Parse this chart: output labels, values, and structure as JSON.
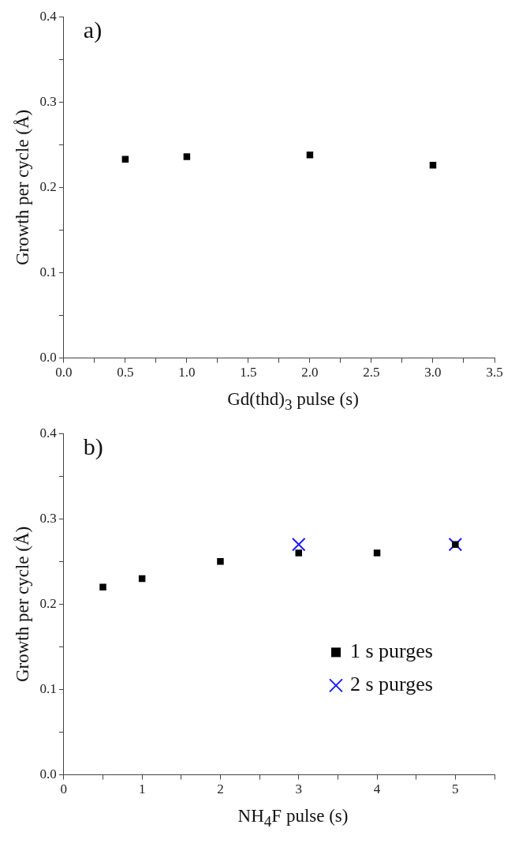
{
  "chart_data": [
    {
      "type": "scatter",
      "annotations": [
        "a)"
      ],
      "xlabel": "Gd(thd)$_{3}$ pulse (s)",
      "ylabel": "Growth per cycle (Å)",
      "x": [
        0.5,
        1,
        2,
        3
      ],
      "series": [
        {
          "color": "#000000",
          "marker": "square",
          "values": [
            0.233,
            0.236,
            0.238,
            0.226
          ]
        }
      ],
      "xlim": [
        0,
        3.5
      ],
      "ylim": [
        0,
        0.4
      ],
      "xticks": [
        {
          "value": 0,
          "label": "0.0"
        },
        {
          "value": 0.25,
          "label": null
        },
        {
          "value": 0.5,
          "label": "0.5"
        },
        {
          "value": 0.75,
          "label": null
        },
        {
          "value": 1,
          "label": "1.0"
        },
        {
          "value": 1.25,
          "label": null
        },
        {
          "value": 1.5,
          "label": "1.5"
        },
        {
          "value": 1.75,
          "label": null
        },
        {
          "value": 2,
          "label": "2.0"
        },
        {
          "value": 2.25,
          "label": null
        },
        {
          "value": 2.5,
          "label": "2.5"
        },
        {
          "value": 2.75,
          "label": null
        },
        {
          "value": 3,
          "label": "3.0"
        },
        {
          "value": 3.25,
          "label": null
        },
        {
          "value": 3.5,
          "label": "3.5"
        }
      ],
      "yticks": [
        {
          "value": 0,
          "label": "0.0"
        },
        {
          "value": 0.05,
          "label": null
        },
        {
          "value": 0.1,
          "label": "0.1"
        },
        {
          "value": 0.15,
          "label": null
        },
        {
          "value": 0.2,
          "label": "0.2"
        },
        {
          "value": 0.25,
          "label": null
        },
        {
          "value": 0.3,
          "label": "0.3"
        },
        {
          "value": 0.35,
          "label": null
        },
        {
          "value": 0.4,
          "label": "0.4"
        }
      ]
    },
    {
      "type": "scatter",
      "annotations": [
        "b)"
      ],
      "xlabel": "NH$_{4}$F pulse (s)",
      "ylabel": "Growth per cycle (Å)",
      "legend": "right",
      "series": [
        {
          "name": "1 s purges",
          "color": "#000000",
          "marker": "square",
          "x": [
            0.5,
            1,
            2,
            3,
            4,
            5
          ],
          "values": [
            0.22,
            0.23,
            0.25,
            0.26,
            0.26,
            0.27
          ]
        },
        {
          "name": "2 s purges",
          "color": "#1a1aff",
          "marker": "cross",
          "x": [
            3,
            5
          ],
          "values": [
            0.27,
            0.27
          ]
        }
      ],
      "xlim": [
        0,
        5.5
      ],
      "ylim": [
        0,
        0.4
      ],
      "xticks": [
        0,
        {
          "value": 0.5,
          "label": null
        },
        1,
        {
          "value": 1.5,
          "label": null
        },
        2,
        {
          "value": 2.5,
          "label": null
        },
        3,
        {
          "value": 3.5,
          "label": null
        },
        4,
        {
          "value": 4.5,
          "label": null
        },
        5,
        {
          "value": 5.5,
          "label": null
        }
      ],
      "yticks": [
        {
          "value": 0,
          "label": "0.0"
        },
        {
          "value": 0.05,
          "label": null
        },
        {
          "value": 0.1,
          "label": "0.1"
        },
        {
          "value": 0.15,
          "label": null
        },
        {
          "value": 0.2,
          "label": "0.2"
        },
        {
          "value": 0.25,
          "label": null
        },
        {
          "value": 0.3,
          "label": "0.3"
        },
        {
          "value": 0.35,
          "label": null
        },
        {
          "value": 0.4,
          "label": "0.4"
        }
      ]
    }
  ]
}
